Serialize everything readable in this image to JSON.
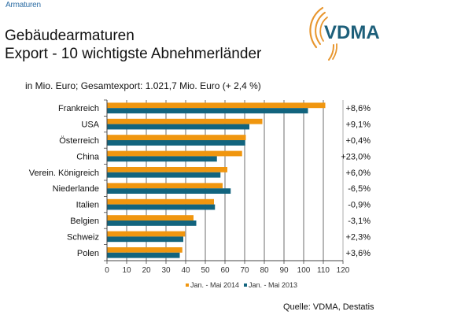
{
  "breadcrumb": "Armaturen",
  "header": {
    "title_line1": "Gebäudearmaturen",
    "title_line2": "Export - 10 wichtigste Abnehmerländer",
    "units_note": "in Mio. Euro; Gesamtexport: 1.021,7 Mio. Euro (+ 2,4 %)"
  },
  "logo": {
    "text": "VDMA",
    "text_color": "#1d5f7a",
    "arc_color": "#e8962e"
  },
  "source": "Quelle: VDMA, Destatis",
  "chart_data": {
    "type": "bar",
    "orientation": "horizontal",
    "title": "Gebäudearmaturen Export - 10 wichtigste Abnehmerländer",
    "subtitle": "in Mio. Euro; Gesamtexport: 1.021,7 Mio. Euro (+ 2,4 %)",
    "xlabel": "",
    "ylabel": "",
    "xlim": [
      0,
      120
    ],
    "xticks": [
      0,
      10,
      20,
      30,
      40,
      50,
      60,
      70,
      80,
      90,
      100,
      110,
      120
    ],
    "grid": "vertical",
    "legend_position": "bottom",
    "categories": [
      "Frankreich",
      "USA",
      "Österreich",
      "China",
      "Verein. Königreich",
      "Niederlande",
      "Italien",
      "Belgien",
      "Schweiz",
      "Polen"
    ],
    "series": [
      {
        "name": "Jan. - Mai 2014",
        "color": "#f0960f",
        "values": [
          111.0,
          79.0,
          70.6,
          68.7,
          61.2,
          58.8,
          54.4,
          44.0,
          39.7,
          38.3
        ]
      },
      {
        "name": "Jan. - Mai 2013",
        "color": "#12647e",
        "values": [
          102.2,
          72.4,
          70.3,
          55.9,
          57.7,
          62.9,
          54.9,
          45.4,
          38.8,
          37.0
        ]
      }
    ],
    "annotations": [
      "+8,6%",
      "+9,1%",
      "+0,4%",
      "+23,0%",
      "+6,0%",
      "-6,5%",
      "-0,9%",
      "-3,1%",
      "+2,3%",
      "+3,6%"
    ]
  }
}
